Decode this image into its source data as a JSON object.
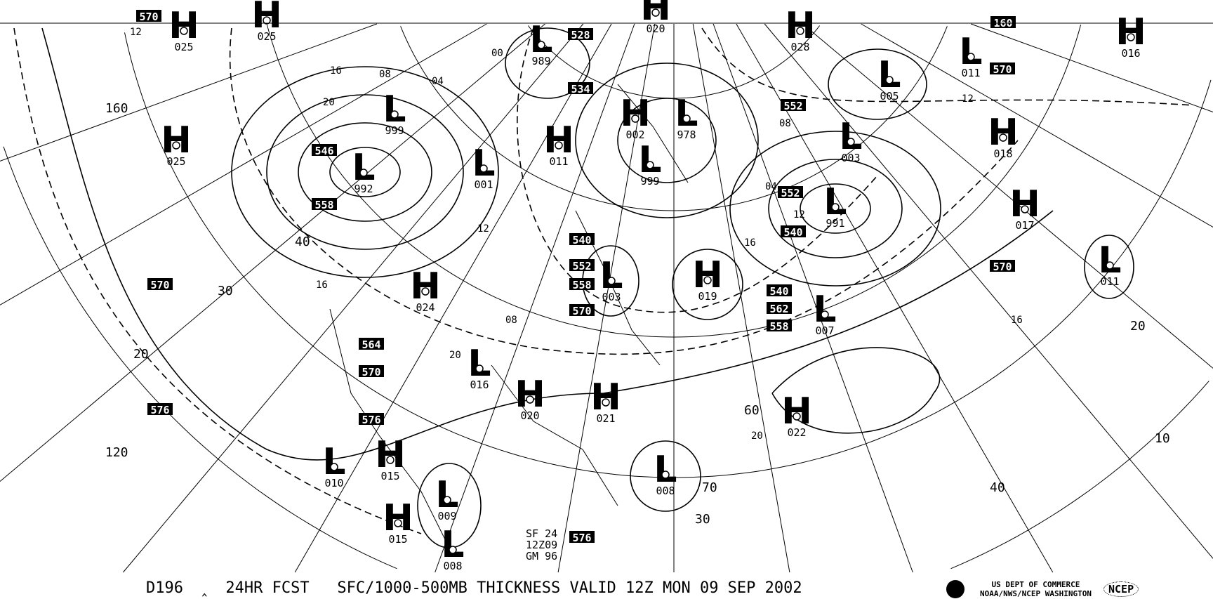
{
  "caption": {
    "chart_id": "D196",
    "forecast": "24HR FCST",
    "product": "SFC/1000-500MB THICKNESS VALID 12Z MON 09 SEP 2002"
  },
  "agency": {
    "line1": "US DEPT OF COMMERCE",
    "line2": "NOAA/NWS/NCEP WASHINGTON",
    "logo": "NCEP"
  },
  "stamp": {
    "line1": "SF 24",
    "line2": "12Z09",
    "line3": "GM 96"
  },
  "pressure_centers": [
    {
      "type": "H",
      "value": "025"
    },
    {
      "type": "H",
      "value": "025"
    },
    {
      "type": "H",
      "value": "025"
    },
    {
      "type": "H",
      "value": "024"
    },
    {
      "type": "H",
      "value": "020"
    },
    {
      "type": "H",
      "value": "021"
    },
    {
      "type": "H",
      "value": "015"
    },
    {
      "type": "H",
      "value": "015"
    },
    {
      "type": "H",
      "value": "019"
    },
    {
      "type": "H",
      "value": "022"
    },
    {
      "type": "H",
      "value": "028"
    },
    {
      "type": "H",
      "value": "016"
    },
    {
      "type": "H",
      "value": "018"
    },
    {
      "type": "H",
      "value": "017"
    },
    {
      "type": "H",
      "value": "011"
    },
    {
      "type": "H",
      "value": "020"
    },
    {
      "type": "H",
      "value": "002"
    },
    {
      "type": "L",
      "value": "989"
    },
    {
      "type": "L",
      "value": "999"
    },
    {
      "type": "L",
      "value": "992"
    },
    {
      "type": "L",
      "value": "001"
    },
    {
      "type": "L",
      "value": "999"
    },
    {
      "type": "L",
      "value": "978"
    },
    {
      "type": "L",
      "value": "003"
    },
    {
      "type": "L",
      "value": "991"
    },
    {
      "type": "L",
      "value": "005"
    },
    {
      "type": "L",
      "value": "011"
    },
    {
      "type": "L",
      "value": "011"
    },
    {
      "type": "L",
      "value": "003"
    },
    {
      "type": "L",
      "value": "016"
    },
    {
      "type": "L",
      "value": "010"
    },
    {
      "type": "L",
      "value": "009"
    },
    {
      "type": "L",
      "value": "008"
    },
    {
      "type": "L",
      "value": "007"
    },
    {
      "type": "L",
      "value": "008"
    }
  ],
  "thickness_labels": [
    "570",
    "528",
    "534",
    "552",
    "160",
    "570",
    "546",
    "558",
    "540",
    "552",
    "558",
    "570",
    "552",
    "540",
    "570",
    "570",
    "564",
    "570",
    "576",
    "576",
    "576",
    "540",
    "562",
    "558"
  ],
  "isobar_labels": [
    "12",
    "16",
    "20",
    "08",
    "04",
    "00",
    "16",
    "12",
    "08",
    "20",
    "16",
    "12",
    "08",
    "04",
    "16",
    "12",
    "20"
  ],
  "latitude_labels": [
    "160",
    "120",
    "40",
    "30",
    "20",
    "60",
    "70",
    "30",
    "40",
    "20",
    "10"
  ]
}
